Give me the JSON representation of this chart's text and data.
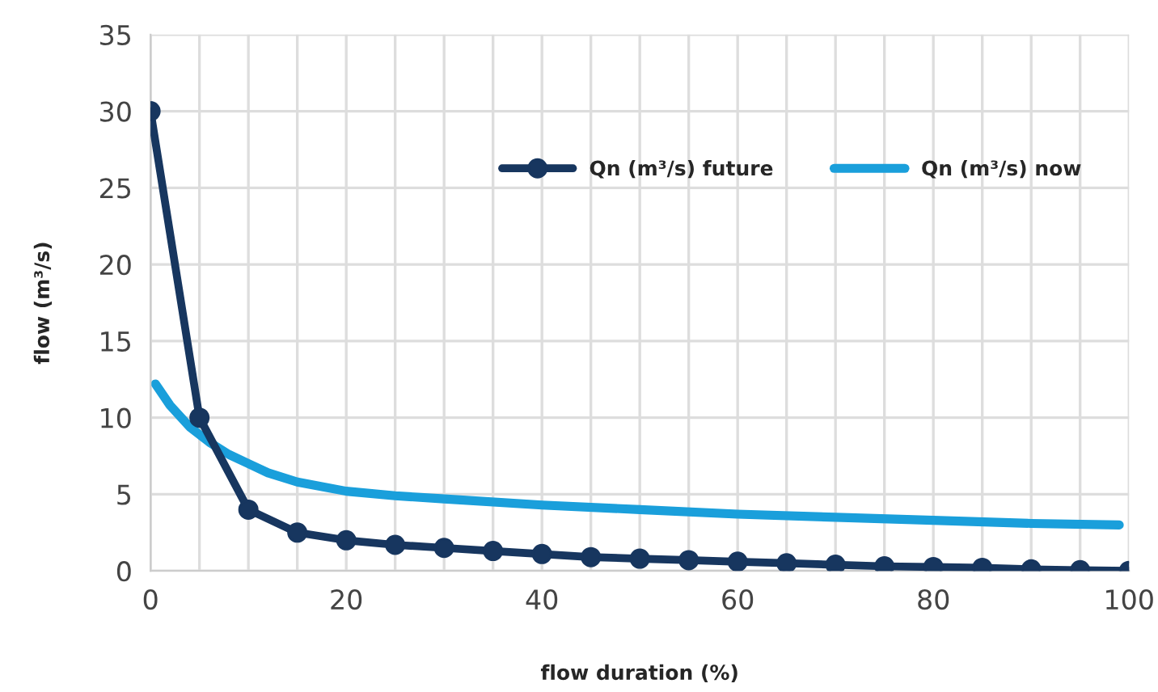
{
  "chart_data": {
    "type": "line",
    "xlabel": "flow duration (%)",
    "ylabel": "flow (m³/s)",
    "xlim": [
      0,
      100
    ],
    "ylim": [
      0,
      35
    ],
    "xticks": [
      0,
      {
        "value": 5,
        "label": null
      },
      {
        "value": 10,
        "label": null
      },
      {
        "value": 15,
        "label": null
      },
      20,
      {
        "value": 25,
        "label": null
      },
      {
        "value": 30,
        "label": null
      },
      {
        "value": 35,
        "label": null
      },
      40,
      {
        "value": 45,
        "label": null
      },
      {
        "value": 50,
        "label": null
      },
      {
        "value": 55,
        "label": null
      },
      60,
      {
        "value": 65,
        "label": null
      },
      {
        "value": 70,
        "label": null
      },
      {
        "value": 75,
        "label": null
      },
      80,
      {
        "value": 85,
        "label": null
      },
      {
        "value": 90,
        "label": null
      },
      {
        "value": 95,
        "label": null
      },
      100
    ],
    "yticks": [
      0,
      5,
      10,
      15,
      20,
      25,
      30,
      35
    ],
    "grid": true,
    "legend": "top right",
    "series": [
      {
        "name": "Qn (m³/s) future",
        "color": "#17365f",
        "marker": "circle",
        "x": [
          0,
          5,
          10,
          15,
          20,
          25,
          30,
          35,
          40,
          45,
          50,
          55,
          60,
          65,
          70,
          75,
          80,
          85,
          90,
          95,
          100
        ],
        "values": [
          30,
          10,
          4,
          2.5,
          2,
          1.7,
          1.5,
          1.3,
          1.1,
          0.9,
          0.8,
          0.7,
          0.6,
          0.5,
          0.4,
          0.3,
          0.25,
          0.2,
          0.1,
          0.05,
          0
        ]
      },
      {
        "name": "Qn (m³/s) now",
        "color": "#1a9fdb",
        "marker": "none",
        "x": [
          0.5,
          2,
          4,
          6,
          8,
          10,
          12,
          15,
          20,
          25,
          30,
          40,
          50,
          60,
          70,
          80,
          90,
          99
        ],
        "values": [
          12.2,
          10.8,
          9.4,
          8.4,
          7.6,
          7.0,
          6.4,
          5.8,
          5.2,
          4.9,
          4.7,
          4.3,
          4.0,
          3.7,
          3.5,
          3.3,
          3.1,
          3.0
        ]
      }
    ]
  }
}
